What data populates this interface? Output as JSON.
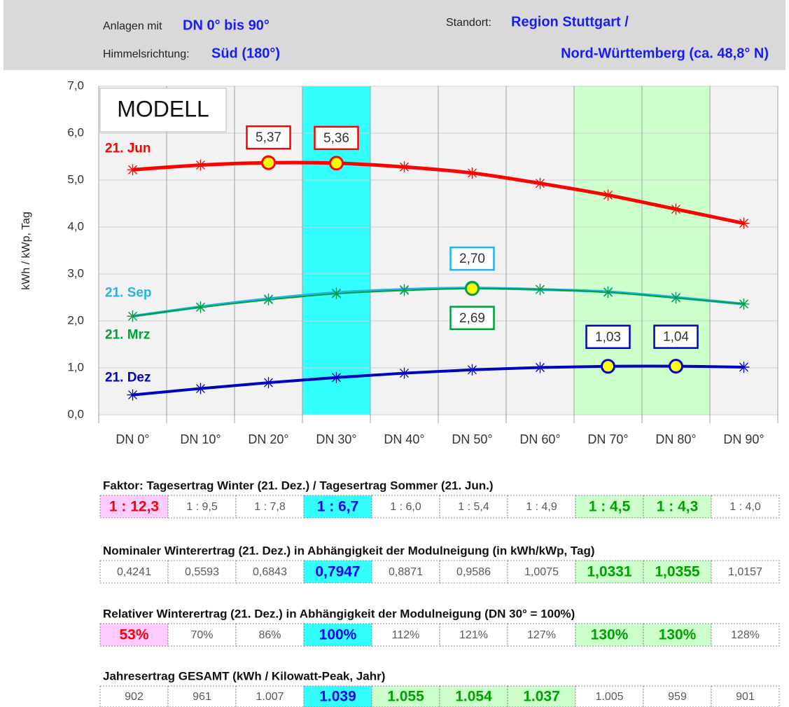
{
  "header": {
    "plants_label": "Anlagen mit",
    "plants_value": "DN 0° bis 90°",
    "direction_label": "Himmelsrichtung:",
    "direction_value": "Süd  (180°)",
    "location_label": "Standort:",
    "location_value_1": "Region Stuttgart /",
    "location_value_2": "Nord-Württemberg (ca. 48,8° N)"
  },
  "chart_data": {
    "type": "line",
    "annotation": "MODELL",
    "y_label": "kWh / kWp, Tag",
    "categories": [
      "DN 0°",
      "DN 10°",
      "DN 20°",
      "DN 30°",
      "DN 40°",
      "DN 50°",
      "DN 60°",
      "DN 70°",
      "DN 80°",
      "DN 90°"
    ],
    "column_fills": [
      null,
      null,
      null,
      "#33ffff",
      null,
      null,
      null,
      "#ccffcc",
      "#ccffcc",
      null
    ],
    "ylim": [
      0,
      7
    ],
    "yticks": [
      {
        "value": 0,
        "label": "0,0"
      },
      {
        "value": 1,
        "label": "1,0"
      },
      {
        "value": 2,
        "label": "2,0"
      },
      {
        "value": 3,
        "label": "3,0"
      },
      {
        "value": 4,
        "label": "4,0"
      },
      {
        "value": 5,
        "label": "5,0"
      },
      {
        "value": 6,
        "label": "6,0"
      },
      {
        "value": 7,
        "label": "7,0"
      }
    ],
    "grid": true,
    "series": [
      {
        "name": "21. Jun",
        "color": "#ff0000",
        "values": [
          5.22,
          5.32,
          5.37,
          5.36,
          5.28,
          5.15,
          4.93,
          4.68,
          4.38,
          4.08
        ],
        "value_labels": [
          null,
          null,
          "5,37",
          "5,36",
          null,
          null,
          null,
          null,
          null,
          null
        ]
      },
      {
        "name": "21. Sep",
        "color": "#22b4e6",
        "values": [
          2.1,
          2.3,
          2.47,
          2.6,
          2.67,
          2.7,
          2.67,
          2.62,
          2.5,
          2.36
        ],
        "value_labels": [
          null,
          null,
          null,
          null,
          null,
          "2,70",
          null,
          null,
          null,
          null
        ]
      },
      {
        "name": "21. Mrz",
        "color": "#00a040",
        "values": [
          2.1,
          2.29,
          2.45,
          2.58,
          2.65,
          2.69,
          2.67,
          2.61,
          2.49,
          2.36
        ],
        "value_labels": [
          null,
          null,
          null,
          null,
          null,
          "2,69",
          null,
          null,
          null,
          null
        ]
      },
      {
        "name": "21. Dez",
        "color": "#0000c0",
        "values": [
          0.4241,
          0.5593,
          0.6843,
          0.7947,
          0.8871,
          0.9586,
          1.0075,
          1.0331,
          1.0355,
          1.0157
        ],
        "value_labels": [
          null,
          null,
          null,
          null,
          null,
          null,
          null,
          "1,03",
          "1,04",
          null
        ]
      }
    ]
  },
  "tables": [
    {
      "title": "Faktor:  Tagesertrag Winter (21. Dez.) / Tagesertrag Sommer (21. Jun.)",
      "cells": [
        "1 : 12,3",
        "1 : 9,5",
        "1 : 7,8",
        "1 : 6,7",
        "1 : 6,0",
        "1 : 5,4",
        "1 : 4,9",
        "1 : 4,5",
        "1 : 4,3",
        "1 : 4,0"
      ],
      "cell_colors": [
        "#ff0000",
        null,
        null,
        "#0000ff",
        null,
        null,
        null,
        "#00a000",
        "#00a000",
        null
      ],
      "cell_fills": [
        "#ffccff",
        null,
        null,
        "#33ffff",
        null,
        null,
        null,
        "#ccffcc",
        "#ccffcc",
        null
      ]
    },
    {
      "title": "Nominaler Winterertrag (21. Dez.) in Abhängigkeit der Modulneigung (in kWh/kWp, Tag)",
      "cells": [
        "0,4241",
        "0,5593",
        "0,6843",
        "0,7947",
        "0,8871",
        "0,9586",
        "1,0075",
        "1,0331",
        "1,0355",
        "1,0157"
      ],
      "cell_colors": [
        null,
        null,
        null,
        "#0000ff",
        null,
        null,
        null,
        "#00a000",
        "#00a000",
        null
      ],
      "cell_fills": [
        null,
        null,
        null,
        "#33ffff",
        null,
        null,
        null,
        "#ccffcc",
        "#ccffcc",
        null
      ]
    },
    {
      "title": "Relativer Winterertrag (21. Dez.) in Abhängigkeit der Modulneigung (DN 30° = 100%)",
      "cells": [
        "53%",
        "70%",
        "86%",
        "100%",
        "112%",
        "121%",
        "127%",
        "130%",
        "130%",
        "128%"
      ],
      "cell_colors": [
        "#ff0000",
        null,
        null,
        "#0000ff",
        null,
        null,
        null,
        "#00a000",
        "#00a000",
        null
      ],
      "cell_fills": [
        "#ffccff",
        null,
        null,
        "#33ffff",
        null,
        null,
        null,
        "#ccffcc",
        "#ccffcc",
        null
      ]
    },
    {
      "title": "Jahresertrag GESAMT  (kWh / Kilowatt-Peak, Jahr)",
      "cells": [
        "902",
        "961",
        "1.007",
        "1.039",
        "1.055",
        "1.054",
        "1.037",
        "1.005",
        "959",
        "901"
      ],
      "cell_colors": [
        null,
        null,
        null,
        "#0000ff",
        "#00a000",
        "#00a000",
        "#00a000",
        null,
        null,
        null
      ],
      "cell_fills": [
        null,
        null,
        null,
        "#33ffff",
        "#ccffcc",
        "#ccffcc",
        "#ccffcc",
        null,
        null,
        null
      ]
    }
  ]
}
